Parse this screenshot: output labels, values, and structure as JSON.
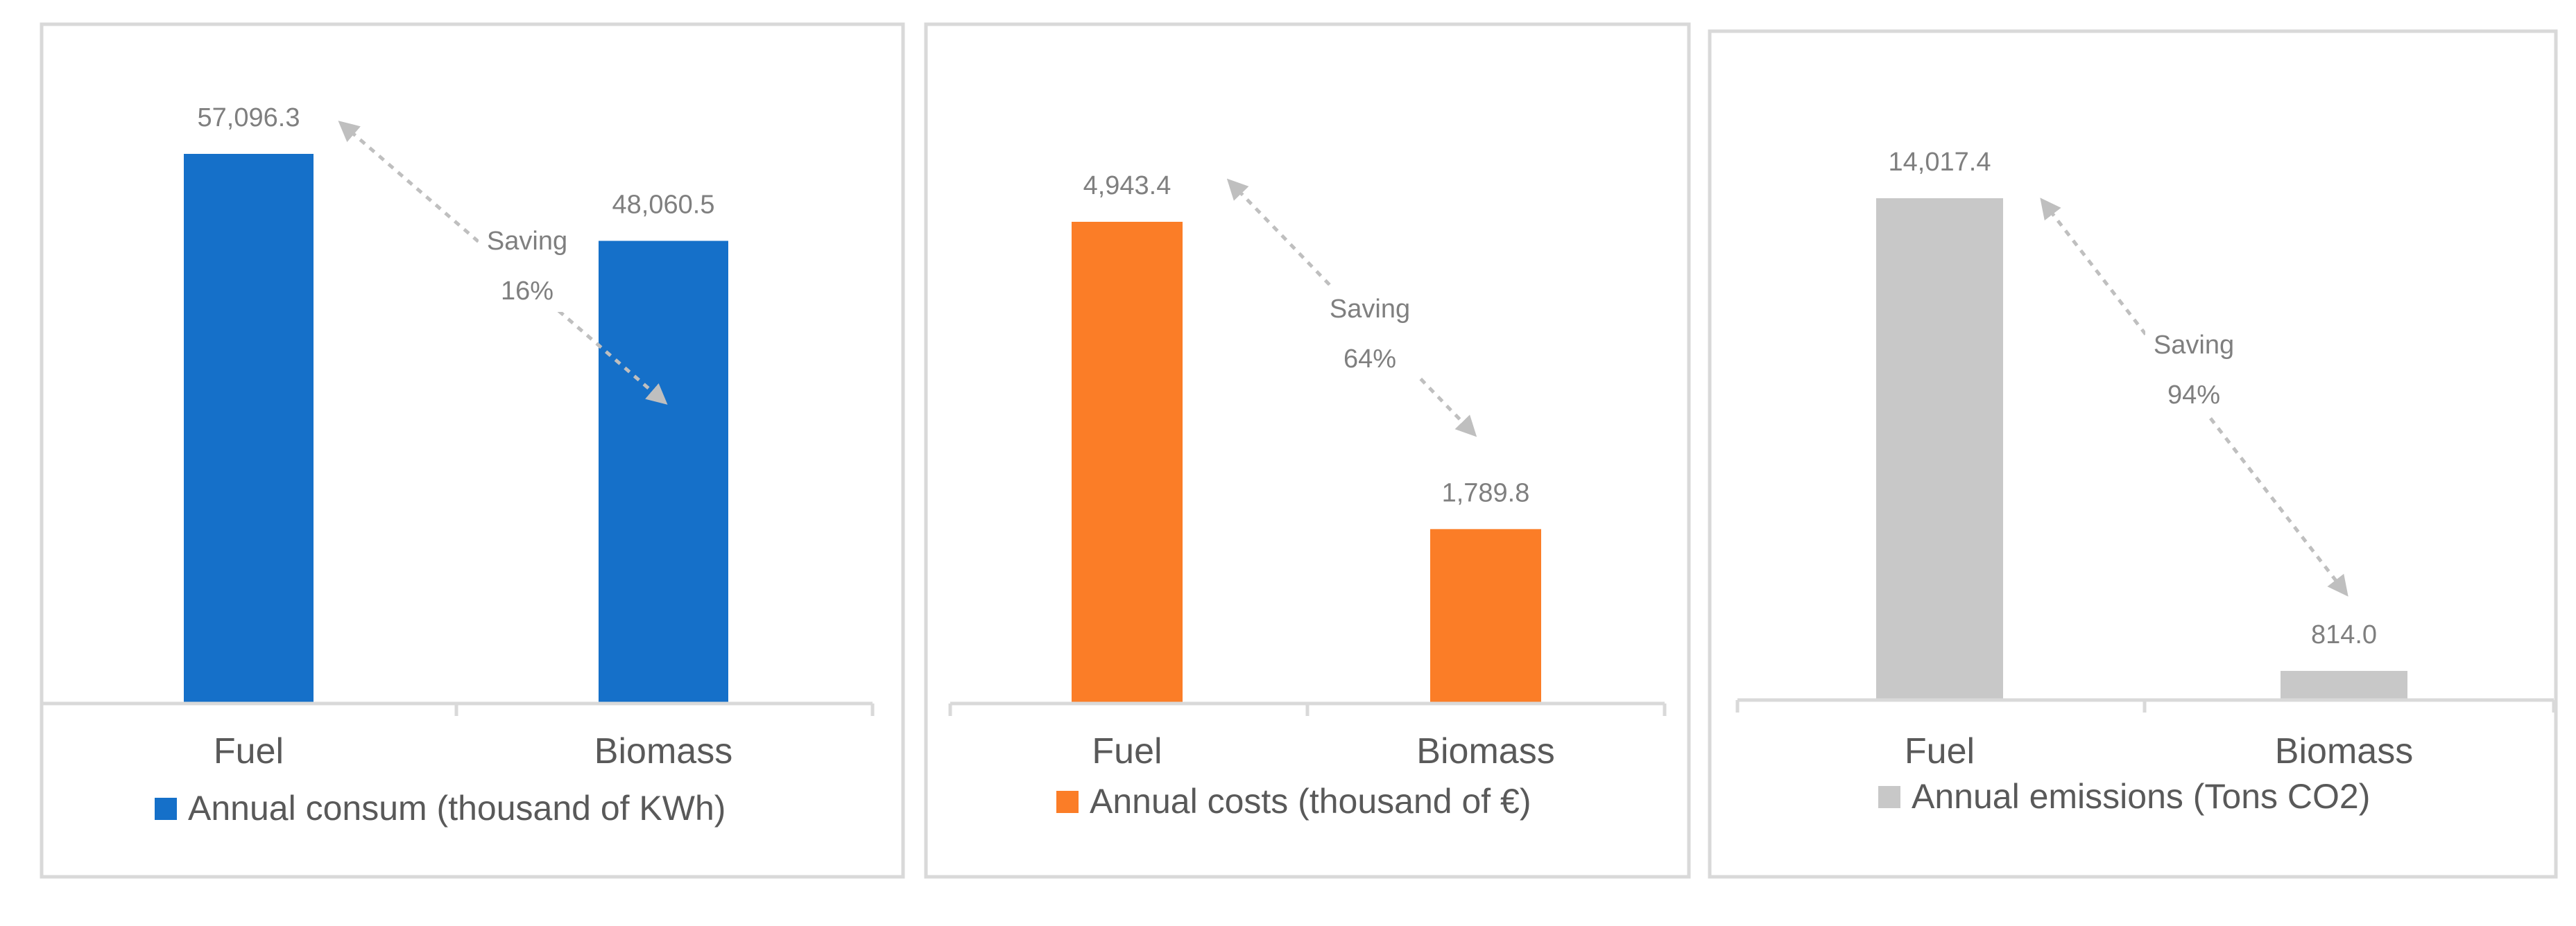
{
  "chart_data": [
    {
      "type": "bar",
      "categories": [
        "Fuel",
        "Biomass"
      ],
      "values": [
        57096.3,
        48060.5
      ],
      "value_labels": [
        "57,096.3",
        "48,060.5"
      ],
      "legend": "Annual consum (thousand of KWh)",
      "color": "#1570c9",
      "annotation": {
        "text": "Saving",
        "percent": "16%"
      },
      "title": "",
      "xlabel": "",
      "ylabel": ""
    },
    {
      "type": "bar",
      "categories": [
        "Fuel",
        "Biomass"
      ],
      "values": [
        4943.4,
        1789.8
      ],
      "value_labels": [
        "4,943.4",
        "1,789.8"
      ],
      "legend": "Annual costs (thousand of €)",
      "color": "#fb7d27",
      "annotation": {
        "text": "Saving",
        "percent": "64%"
      },
      "title": "",
      "xlabel": "",
      "ylabel": ""
    },
    {
      "type": "bar",
      "categories": [
        "Fuel",
        "Biomass"
      ],
      "values": [
        14017.4,
        814.0
      ],
      "value_labels": [
        "14,017.4",
        "814.0"
      ],
      "legend": "Annual emissions (Tons CO2)",
      "color": "#c8c8c8",
      "annotation": {
        "text": "Saving",
        "percent": "94%"
      },
      "title": "",
      "xlabel": "",
      "ylabel": ""
    }
  ],
  "colors": {
    "text": "#595959",
    "label": "#7f7f7f",
    "axis": "#d9d9d9",
    "arrow": "#bfbfbf"
  }
}
